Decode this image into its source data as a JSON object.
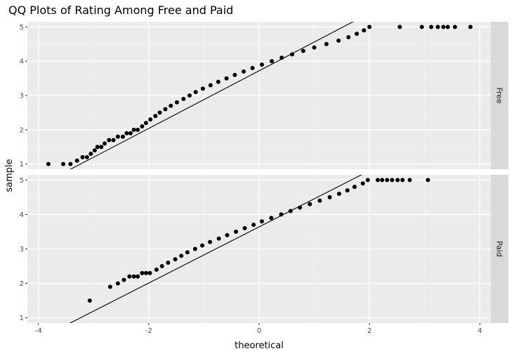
{
  "chart_data": {
    "type": "scatter",
    "title": "QQ Plots of Rating Among Free and Paid",
    "xlabel": "theoretical",
    "ylabel": "sample",
    "xlim": [
      -4.2,
      4.2
    ],
    "ylim": [
      0.85,
      5.15
    ],
    "x_ticks": [
      -4,
      -2,
      0,
      2,
      4
    ],
    "x_tick_labels": [
      "-4",
      "-2",
      "0",
      "2",
      "4"
    ],
    "y_ticks": [
      1,
      2,
      3,
      4,
      5
    ],
    "y_tick_labels": [
      "1",
      "2",
      "3",
      "4",
      "5"
    ],
    "grid": true,
    "facets": [
      {
        "label": "Free",
        "qq_line": {
          "slope": 0.84,
          "intercept": 3.72
        },
        "points": [
          [
            -3.82,
            1.0
          ],
          [
            -3.55,
            1.0
          ],
          [
            -3.42,
            1.0
          ],
          [
            -3.3,
            1.1
          ],
          [
            -3.2,
            1.2
          ],
          [
            -3.12,
            1.2
          ],
          [
            -3.05,
            1.3
          ],
          [
            -2.98,
            1.4
          ],
          [
            -2.93,
            1.5
          ],
          [
            -2.86,
            1.5
          ],
          [
            -2.8,
            1.6
          ],
          [
            -2.72,
            1.7
          ],
          [
            -2.64,
            1.7
          ],
          [
            -2.56,
            1.8
          ],
          [
            -2.47,
            1.8
          ],
          [
            -2.4,
            1.9
          ],
          [
            -2.33,
            1.9
          ],
          [
            -2.27,
            2.0
          ],
          [
            -2.2,
            2.0
          ],
          [
            -2.12,
            2.1
          ],
          [
            -2.05,
            2.2
          ],
          [
            -1.97,
            2.3
          ],
          [
            -1.88,
            2.4
          ],
          [
            -1.8,
            2.5
          ],
          [
            -1.7,
            2.6
          ],
          [
            -1.6,
            2.7
          ],
          [
            -1.49,
            2.8
          ],
          [
            -1.37,
            2.9
          ],
          [
            -1.26,
            3.0
          ],
          [
            -1.15,
            3.1
          ],
          [
            -1.02,
            3.2
          ],
          [
            -0.88,
            3.3
          ],
          [
            -0.74,
            3.4
          ],
          [
            -0.59,
            3.5
          ],
          [
            -0.44,
            3.6
          ],
          [
            -0.28,
            3.7
          ],
          [
            -0.12,
            3.8
          ],
          [
            0.05,
            3.9
          ],
          [
            0.23,
            4.0
          ],
          [
            0.41,
            4.1
          ],
          [
            0.6,
            4.2
          ],
          [
            0.8,
            4.3
          ],
          [
            1.0,
            4.4
          ],
          [
            1.22,
            4.5
          ],
          [
            1.44,
            4.6
          ],
          [
            1.62,
            4.7
          ],
          [
            1.77,
            4.8
          ],
          [
            1.9,
            4.9
          ],
          [
            2.0,
            5.0
          ],
          [
            2.55,
            5.0
          ],
          [
            2.95,
            5.0
          ],
          [
            3.12,
            5.0
          ],
          [
            3.24,
            5.0
          ],
          [
            3.34,
            5.0
          ],
          [
            3.42,
            5.0
          ],
          [
            3.55,
            5.0
          ],
          [
            3.83,
            5.0
          ]
        ]
      },
      {
        "label": "Paid",
        "qq_line": {
          "slope": 0.815,
          "intercept": 3.64
        },
        "points": [
          [
            -3.07,
            1.5
          ],
          [
            -2.7,
            1.9
          ],
          [
            -2.56,
            2.0
          ],
          [
            -2.45,
            2.1
          ],
          [
            -2.35,
            2.2
          ],
          [
            -2.27,
            2.2
          ],
          [
            -2.2,
            2.2
          ],
          [
            -2.12,
            2.3
          ],
          [
            -2.05,
            2.3
          ],
          [
            -1.98,
            2.3
          ],
          [
            -1.86,
            2.4
          ],
          [
            -1.76,
            2.5
          ],
          [
            -1.65,
            2.6
          ],
          [
            -1.52,
            2.7
          ],
          [
            -1.41,
            2.8
          ],
          [
            -1.3,
            2.9
          ],
          [
            -1.16,
            3.0
          ],
          [
            -1.03,
            3.1
          ],
          [
            -0.89,
            3.2
          ],
          [
            -0.73,
            3.3
          ],
          [
            -0.58,
            3.4
          ],
          [
            -0.42,
            3.5
          ],
          [
            -0.26,
            3.6
          ],
          [
            -0.1,
            3.7
          ],
          [
            0.05,
            3.8
          ],
          [
            0.22,
            3.9
          ],
          [
            0.4,
            4.0
          ],
          [
            0.57,
            4.1
          ],
          [
            0.74,
            4.2
          ],
          [
            0.92,
            4.3
          ],
          [
            1.1,
            4.4
          ],
          [
            1.28,
            4.5
          ],
          [
            1.45,
            4.6
          ],
          [
            1.6,
            4.7
          ],
          [
            1.73,
            4.8
          ],
          [
            1.88,
            4.9
          ],
          [
            1.97,
            5.0
          ],
          [
            2.15,
            5.0
          ],
          [
            2.23,
            5.0
          ],
          [
            2.32,
            5.0
          ],
          [
            2.41,
            5.0
          ],
          [
            2.51,
            5.0
          ],
          [
            2.6,
            5.0
          ],
          [
            2.73,
            5.0
          ],
          [
            3.06,
            5.0
          ]
        ]
      }
    ]
  }
}
